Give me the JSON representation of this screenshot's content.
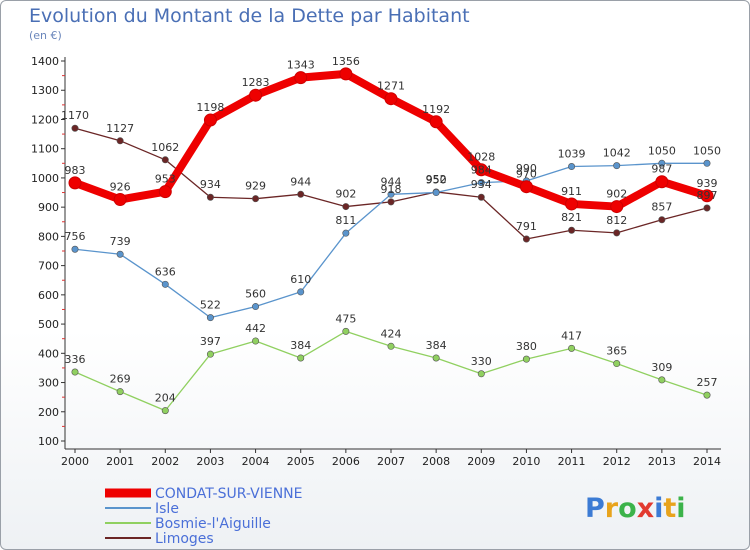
{
  "title": "Evolution du Montant de la Dette par Habitant",
  "unit_label": "(en €)",
  "brand": {
    "text": "Proxiti",
    "letter_colors": [
      "#3c7bd4",
      "#e8a31c",
      "#3cb34a",
      "#e23a2f",
      "#3c7bd4",
      "#e8a31c",
      "#3cb34a"
    ]
  },
  "chart_data": {
    "type": "line",
    "title": "Evolution du Montant de la Dette par Habitant",
    "ylabel": "(en €)",
    "xlabel": "",
    "x": [
      "2000",
      "2001",
      "2002",
      "2003",
      "2004",
      "2005",
      "2006",
      "2007",
      "2008",
      "2009",
      "2010",
      "2011",
      "2012",
      "2013",
      "2014"
    ],
    "ylim": [
      100,
      1400
    ],
    "yticks": [
      100,
      200,
      300,
      400,
      500,
      600,
      700,
      800,
      900,
      1000,
      1100,
      1200,
      1300,
      1400
    ],
    "grid": false,
    "legend_position": "bottom-left",
    "series": [
      {
        "name": "CONDAT-SUR-VIENNE",
        "color": "#ee0000",
        "width": 8,
        "marker": 6,
        "values": [
          983,
          926,
          953,
          1198,
          1283,
          1343,
          1356,
          1271,
          1192,
          1028,
          970,
          911,
          902,
          987,
          939
        ]
      },
      {
        "name": "Isle",
        "color": "#5a94cc",
        "width": 1.3,
        "marker": 3.2,
        "values": [
          756,
          739,
          636,
          522,
          560,
          610,
          811,
          944,
          950,
          984,
          990,
          1039,
          1042,
          1050,
          1050
        ]
      },
      {
        "name": "Bosmie-l'Aiguille",
        "color": "#90d060",
        "width": 1.3,
        "marker": 3.2,
        "values": [
          336,
          269,
          204,
          397,
          442,
          384,
          475,
          424,
          384,
          330,
          380,
          417,
          365,
          309,
          257
        ]
      },
      {
        "name": "Limoges",
        "color": "#6b2626",
        "width": 1.3,
        "marker": 3.2,
        "values": [
          1170,
          1127,
          1062,
          934,
          929,
          944,
          902,
          918,
          952,
          934,
          791,
          821,
          812,
          857,
          897
        ]
      }
    ]
  }
}
